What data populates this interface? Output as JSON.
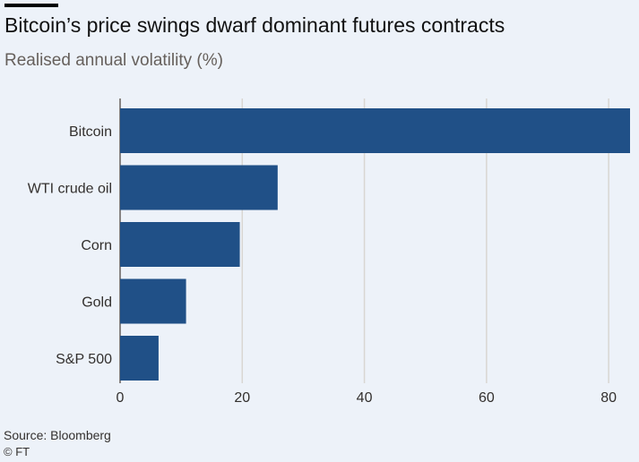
{
  "title": "Bitcoin’s price swings dwarf dominant futures contracts",
  "subtitle": "Realised annual volatility (%)",
  "source": "Source: Bloomberg",
  "copyright": "© FT",
  "colors": {
    "background": "#edf2f9",
    "bar": "#205087",
    "grid": "#d9d6d2",
    "axis": "#66605c"
  },
  "chart_data": {
    "type": "bar",
    "orientation": "horizontal",
    "categories": [
      "Bitcoin",
      "WTI crude oil",
      "Corn",
      "Gold",
      "S&P 500"
    ],
    "values": [
      83.5,
      25.8,
      19.6,
      10.8,
      6.3
    ],
    "title": "Bitcoin’s price swings dwarf dominant futures contracts",
    "subtitle": "Realised annual volatility (%)",
    "xlim": [
      0,
      83.5
    ],
    "xticks": [
      0,
      20,
      40,
      60,
      80
    ],
    "grid": "vertical",
    "legend": "none"
  }
}
